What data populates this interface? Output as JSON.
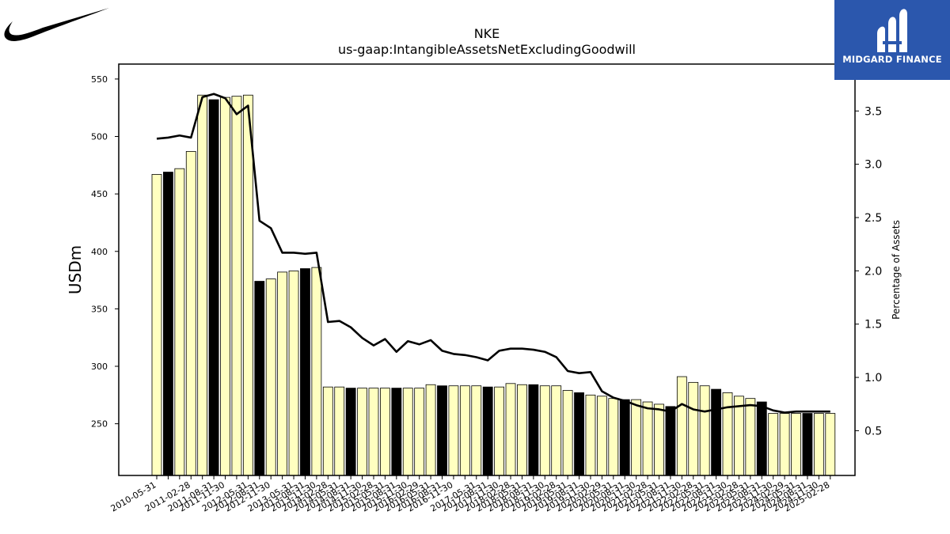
{
  "header": {
    "ticker": "NKE",
    "metric": "us-gaap:IntangibleAssetsNetExcludingGoodwill"
  },
  "logos": {
    "company_icon": "nike-swoosh-icon",
    "brand_name": "MIDGARD FINANCE",
    "brand_color": "#2b57ad"
  },
  "colors": {
    "bar_light": "#ffffc0",
    "bar_dark": "#000000",
    "line": "#000000"
  },
  "chart_data": {
    "type": "bar",
    "title": "NKE",
    "subtitle": "us-gaap:IntangibleAssetsNetExcludingGoodwill",
    "ylabel": "USDm",
    "y2label": "Percentage of Assets",
    "ylim": [
      205,
      563
    ],
    "y2lim": [
      0.08,
      3.94
    ],
    "yticks": [
      250,
      300,
      350,
      400,
      450,
      500,
      550
    ],
    "y2ticks": [
      0.5,
      1.0,
      1.5,
      2.0,
      2.5,
      3.0,
      3.5
    ],
    "grid": false,
    "legend": "none",
    "categories": [
      "2010-05-31",
      "2010-08-31",
      "2010-11-30",
      "2011-02-28",
      "2011-05-31",
      "2011-08-31",
      "2011-11-30",
      "2012-02-29",
      "2012-05-31",
      "2012-08-31",
      "2012-11-30",
      "2013-02-28",
      "2013-05-31",
      "2013-08-31",
      "2013-11-30",
      "2014-02-28",
      "2014-05-31",
      "2014-08-31",
      "2014-11-30",
      "2015-02-28",
      "2015-05-31",
      "2015-08-31",
      "2015-11-30",
      "2016-02-29",
      "2016-05-31",
      "2016-08-31",
      "2016-11-30",
      "2017-02-28",
      "2017-05-31",
      "2017-08-31",
      "2017-11-30",
      "2018-02-28",
      "2018-05-31",
      "2018-08-31",
      "2018-11-30",
      "2019-02-28",
      "2019-05-31",
      "2019-08-31",
      "2019-11-30",
      "2020-02-29",
      "2020-05-31",
      "2020-08-31",
      "2020-11-30",
      "2021-02-28",
      "2021-05-31",
      "2021-08-31",
      "2021-11-30",
      "2022-02-28",
      "2022-05-31",
      "2022-08-31",
      "2022-11-30",
      "2023-02-28",
      "2023-05-31",
      "2023-08-31",
      "2023-11-30",
      "2024-02-29",
      "2024-05-31",
      "2024-08-31",
      "2024-11-30",
      "2025-02-28"
    ],
    "xtick_labels": [
      "2010-05-31",
      "2011-02-28",
      "2011-08-31",
      "2011-11-30",
      "2012-05-31",
      "2012-08-31",
      "2012-11-30",
      "2013-05-31",
      "2013-08-31",
      "2013-11-30",
      "2014-02-28",
      "2014-05-31",
      "2014-08-31",
      "2014-11-30",
      "2015-02-28",
      "2015-05-31",
      "2015-08-31",
      "2015-11-30",
      "2016-02-29",
      "2016-05-31",
      "2016-08-31",
      "2016-11-30",
      "2017-05-31",
      "2017-08-31",
      "2017-11-30",
      "2018-02-28",
      "2018-05-31",
      "2018-08-31",
      "2018-11-30",
      "2019-02-28",
      "2019-05-31",
      "2019-08-31",
      "2019-11-30",
      "2020-02-29",
      "2020-05-31",
      "2020-08-31",
      "2020-11-30",
      "2021-02-28",
      "2021-05-31",
      "2021-08-31",
      "2021-11-30",
      "2022-02-28",
      "2022-05-31",
      "2022-08-31",
      "2022-11-30",
      "2023-02-28",
      "2023-05-31",
      "2023-08-31",
      "2023-11-30",
      "2024-02-29",
      "2024-05-31",
      "2024-08-31",
      "2024-11-30",
      "2025-02-28"
    ],
    "dark_bar_indices": [
      1,
      5,
      9,
      13,
      17,
      21,
      25,
      29,
      33,
      37,
      41,
      45,
      49,
      53,
      57
    ],
    "series": [
      {
        "name": "USDm",
        "type": "bar",
        "values": [
          467,
          469,
          472,
          487,
          536,
          532,
          534,
          535,
          536,
          374,
          376,
          382,
          383,
          385,
          386,
          282,
          282,
          281,
          281,
          281,
          281,
          281,
          281,
          281,
          284,
          283,
          283,
          283,
          283,
          282,
          282,
          285,
          284,
          284,
          283,
          283,
          279,
          277,
          275,
          274,
          272,
          271,
          271,
          269,
          267,
          265,
          291,
          286,
          283,
          280,
          277,
          274,
          272,
          269,
          259,
          259,
          259,
          259,
          259,
          259
        ]
      },
      {
        "name": "Percentage of Assets",
        "type": "line",
        "axis": "right",
        "values": [
          3.24,
          3.25,
          3.27,
          3.25,
          3.63,
          3.66,
          3.62,
          3.47,
          3.55,
          2.47,
          2.4,
          2.17,
          2.17,
          2.16,
          2.17,
          1.52,
          1.53,
          1.47,
          1.37,
          1.3,
          1.36,
          1.24,
          1.34,
          1.31,
          1.35,
          1.25,
          1.22,
          1.21,
          1.19,
          1.16,
          1.25,
          1.27,
          1.27,
          1.26,
          1.24,
          1.19,
          1.06,
          1.04,
          1.05,
          0.87,
          0.81,
          0.78,
          0.74,
          0.71,
          0.7,
          0.68,
          0.75,
          0.7,
          0.68,
          0.7,
          0.72,
          0.73,
          0.74,
          0.73,
          0.69,
          0.67,
          0.68,
          0.68,
          0.68,
          0.68
        ]
      }
    ]
  }
}
